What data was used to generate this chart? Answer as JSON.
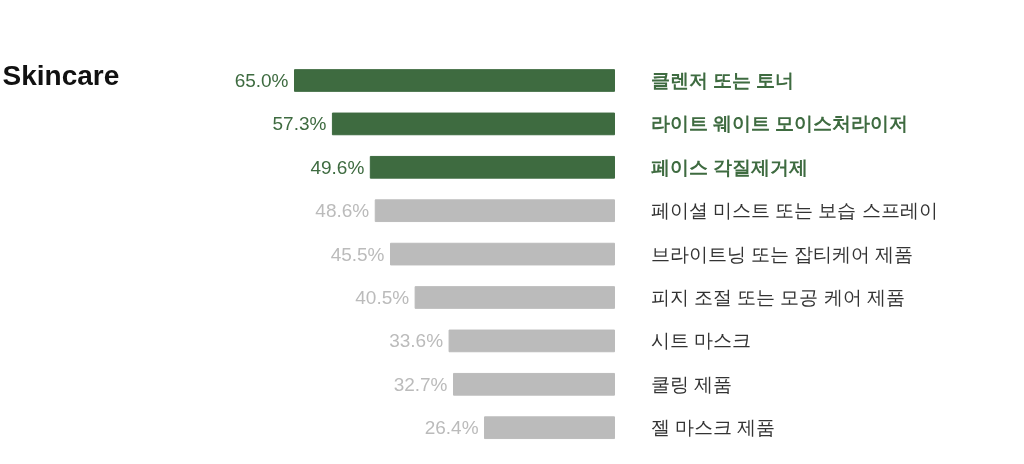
{
  "chart_data": {
    "type": "bar",
    "orientation": "horizontal",
    "title": "Skincare",
    "categories": [
      "클렌저 또는 토너",
      "라이트 웨이트 모이스처라이저",
      "페이스 각질제거제",
      "페이셜 미스트 또는 보습 스프레이",
      "브라이트닝 또는 잡티케어 제품",
      "피지 조절 또는 모공 케어 제품",
      "시트 마스크",
      "쿨링 제품",
      "젤 마스크 제품"
    ],
    "values": [
      65.0,
      57.3,
      49.6,
      48.6,
      45.5,
      40.5,
      33.6,
      32.7,
      26.4
    ],
    "value_labels": [
      "65.0%",
      "57.3%",
      "49.6%",
      "48.6%",
      "45.5%",
      "40.5%",
      "33.6%",
      "32.7%",
      "26.4%"
    ],
    "colors": [
      "#3e6b40",
      "#3e6b40",
      "#3e6b40",
      "#bbbbbb",
      "#bbbbbb",
      "#bbbbbb",
      "#bbbbbb",
      "#bbbbbb",
      "#bbbbbb"
    ],
    "tick_labels": false,
    "grid": false
  }
}
